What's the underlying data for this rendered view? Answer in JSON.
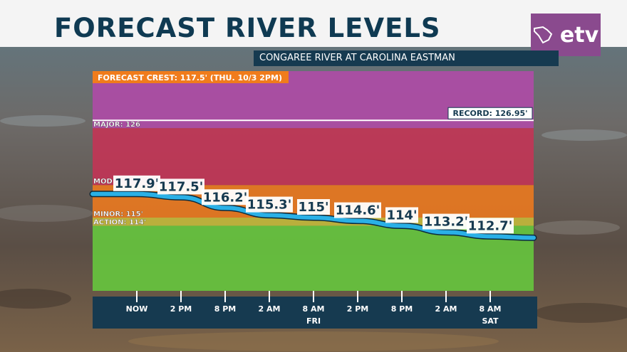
{
  "header": {
    "title": "FORECAST RIVER LEVELS"
  },
  "logo": {
    "text": "etv",
    "color": "#8a4a8e"
  },
  "subtitle": "CONGAREE RIVER AT CAROLINA EASTMAN",
  "chart_data": {
    "type": "line",
    "title": "FORECAST RIVER LEVELS",
    "subtitle": "CONGAREE RIVER AT CAROLINA EASTMAN",
    "xlabel": "",
    "ylabel": "",
    "categories": [
      "NOW",
      "2 PM",
      "8 PM",
      "2 AM",
      "8 AM",
      "2 PM",
      "8 PM",
      "2 AM",
      "8 AM"
    ],
    "day_labels": [
      "",
      "",
      "",
      "",
      "FRI",
      "",
      "",
      "",
      "SAT"
    ],
    "series": [
      {
        "values": [
          117.9,
          117.5,
          116.2,
          115.3,
          115,
          114.6,
          114,
          113.2,
          112.7
        ],
        "labels": [
          "117.9'",
          "117.5'",
          "116.2'",
          "115.3'",
          "115'",
          "114.6'",
          "114'",
          "113.2'",
          "112.7'"
        ]
      }
    ],
    "bands": [
      {
        "label": "",
        "from": 106,
        "to": 114,
        "color": "#67c93e"
      },
      {
        "label": "ACTION: 114'",
        "from": 114,
        "to": 115,
        "color": "#c7bc3a"
      },
      {
        "label": "MINOR: 115'",
        "from": 115,
        "to": 119,
        "color": "#ee7a1e"
      },
      {
        "label": "MOD",
        "from": 119,
        "to": 126,
        "color": "#c53355"
      },
      {
        "label": "MAJOR: 126",
        "from": 126,
        "to": 133,
        "color": "#b04aa8"
      }
    ],
    "record": {
      "value": 126.95,
      "label": "RECORD: 126.95'"
    },
    "crest": {
      "label": "FORECAST CREST: 117.5' (THU. 10/3 2PM)"
    },
    "ylim": [
      106,
      133
    ],
    "colors": {
      "line": "#2ab0e6",
      "axis_bg": "#163a50",
      "crest_bg": "#f07c1c"
    }
  }
}
